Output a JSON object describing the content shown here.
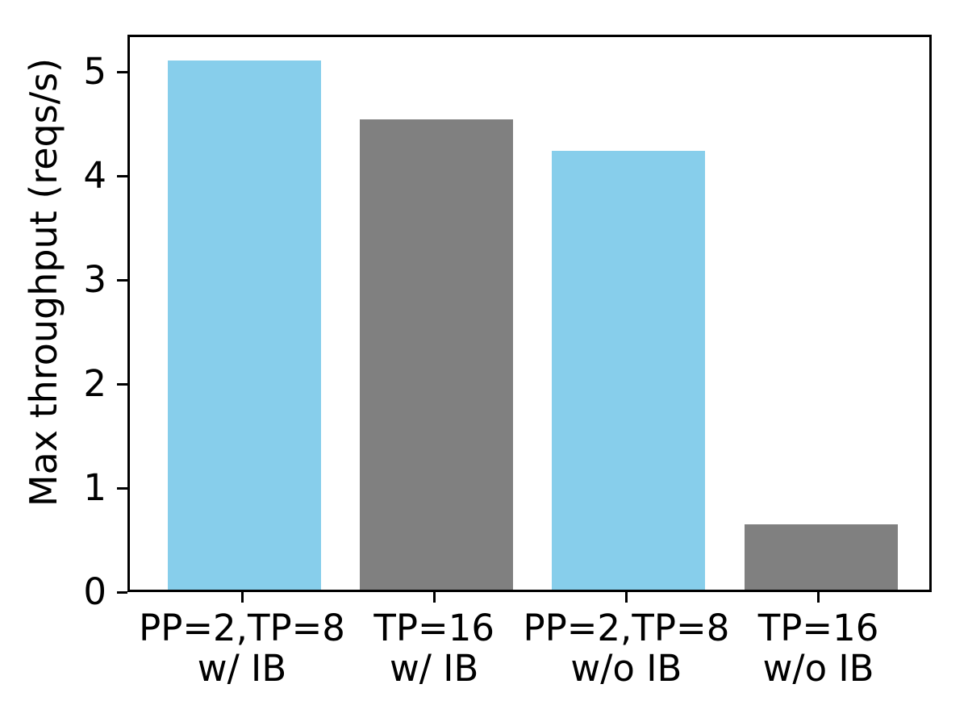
{
  "chart_data": {
    "type": "bar",
    "title": "",
    "xlabel": "",
    "ylabel": "Max throughput (reqs/s)",
    "categories": [
      "PP=2,TP=8\nw/ IB",
      "TP=16\nw/ IB",
      "PP=2,TP=8\nw/o IB",
      "TP=16\nw/o IB"
    ],
    "values": [
      5.09,
      4.52,
      4.22,
      0.63
    ],
    "bar_colors": [
      "#87ceeb",
      "#808080",
      "#87ceeb",
      "#808080"
    ],
    "yticks": [
      0,
      1,
      2,
      3,
      4,
      5
    ],
    "ylim": [
      0,
      5.36
    ],
    "grid": false,
    "legend": "none",
    "axis_color": "#000000",
    "background_color": "#ffffff"
  }
}
